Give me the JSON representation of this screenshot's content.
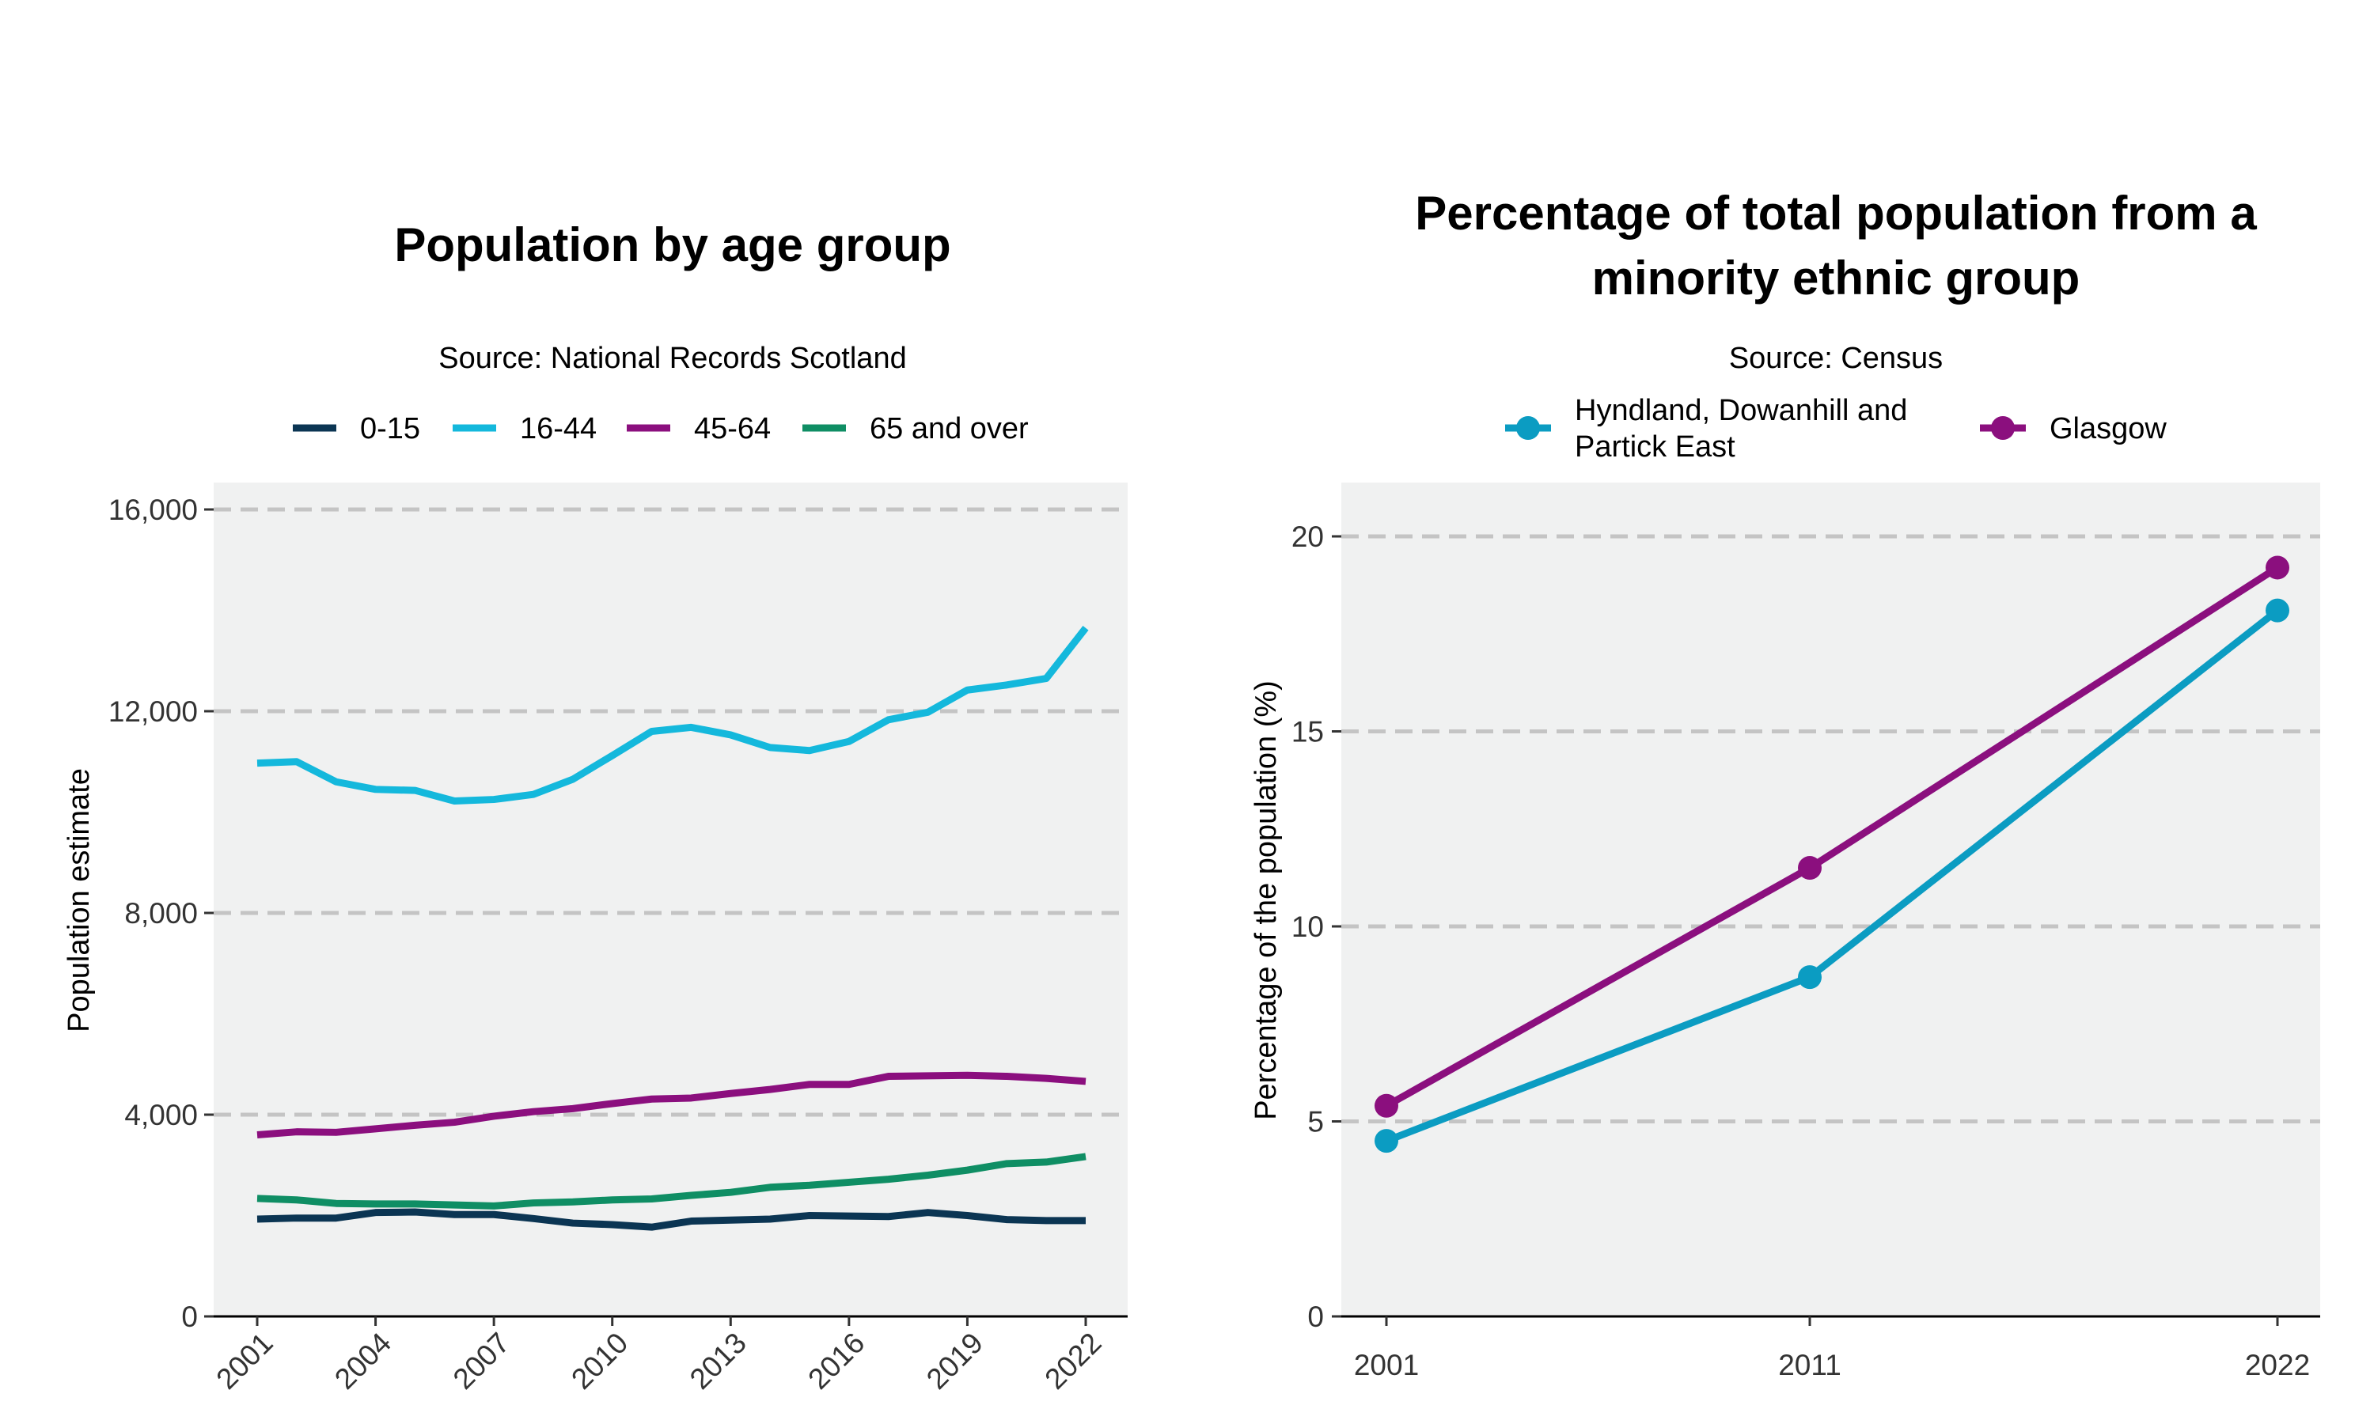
{
  "chart_data": [
    {
      "type": "line",
      "title": "Population by age group",
      "subtitle": "Source: National Records Scotland",
      "xlabel": "",
      "ylabel": "Population estimate",
      "ylim": [
        0,
        16000
      ],
      "yticks": [
        0,
        4000,
        8000,
        12000,
        16000
      ],
      "ytick_labels": [
        "0",
        "4,000",
        "8,000",
        "12,000",
        "16,000"
      ],
      "xlim": [
        2001,
        2022
      ],
      "xticks": [
        2001,
        2004,
        2007,
        2010,
        2013,
        2016,
        2019,
        2022
      ],
      "xtick_labels": [
        "2001",
        "2004",
        "2007",
        "2010",
        "2013",
        "2016",
        "2019",
        "2022"
      ],
      "grid": "horizontal dashed",
      "legend_position": "top",
      "x": [
        2001,
        2002,
        2003,
        2004,
        2005,
        2006,
        2007,
        2008,
        2009,
        2010,
        2011,
        2012,
        2013,
        2014,
        2015,
        2016,
        2017,
        2018,
        2019,
        2020,
        2021,
        2022
      ],
      "series": [
        {
          "name": "0-15",
          "color": "#0b3553",
          "values": [
            1930,
            1950,
            1950,
            2060,
            2070,
            2020,
            2020,
            1940,
            1850,
            1820,
            1770,
            1890,
            1910,
            1930,
            2000,
            1990,
            1980,
            2060,
            2000,
            1920,
            1900,
            1900
          ]
        },
        {
          "name": "16-44",
          "color": "#14b8dc",
          "values": [
            10970,
            11000,
            10600,
            10450,
            10430,
            10220,
            10250,
            10350,
            10650,
            11120,
            11600,
            11680,
            11530,
            11280,
            11220,
            11400,
            11830,
            11980,
            12420,
            12520,
            12650,
            13650
          ]
        },
        {
          "name": "45-64",
          "color": "#8b0f7e",
          "values": [
            3600,
            3660,
            3650,
            3720,
            3790,
            3850,
            3970,
            4060,
            4120,
            4220,
            4310,
            4330,
            4420,
            4500,
            4600,
            4600,
            4760,
            4770,
            4780,
            4760,
            4720,
            4660
          ]
        },
        {
          "name": "65 and over",
          "color": "#0f8e64",
          "values": [
            2340,
            2310,
            2240,
            2230,
            2230,
            2210,
            2190,
            2250,
            2270,
            2310,
            2330,
            2400,
            2460,
            2560,
            2600,
            2660,
            2720,
            2800,
            2900,
            3030,
            3060,
            3170
          ]
        }
      ]
    },
    {
      "type": "line",
      "title": "Percentage of total population from a minority ethnic group",
      "title_lines": [
        "Percentage of total population from a",
        "minority ethnic group"
      ],
      "subtitle": "Source: Census",
      "xlabel": "",
      "ylabel": "Percentage of the population (%)",
      "ylim": [
        0,
        21.4
      ],
      "yticks": [
        0,
        5,
        10,
        15,
        20
      ],
      "ytick_labels": [
        "0",
        "5",
        "10",
        "15",
        "20"
      ],
      "x": [
        2001,
        2011,
        2022
      ],
      "xtick_labels": [
        "2001",
        "2011",
        "2022"
      ],
      "grid": "horizontal dashed",
      "legend_position": "top",
      "series": [
        {
          "name": "Hyndland, Dowanhill and Partick East",
          "legend_lines": [
            "Hyndland, Dowanhill and",
            "Partick East"
          ],
          "color": "#0b9cc2",
          "values": [
            4.5,
            8.7,
            18.1
          ]
        },
        {
          "name": "Glasgow",
          "color": "#8b0f7e",
          "values": [
            5.4,
            11.5,
            19.2
          ]
        }
      ]
    }
  ]
}
